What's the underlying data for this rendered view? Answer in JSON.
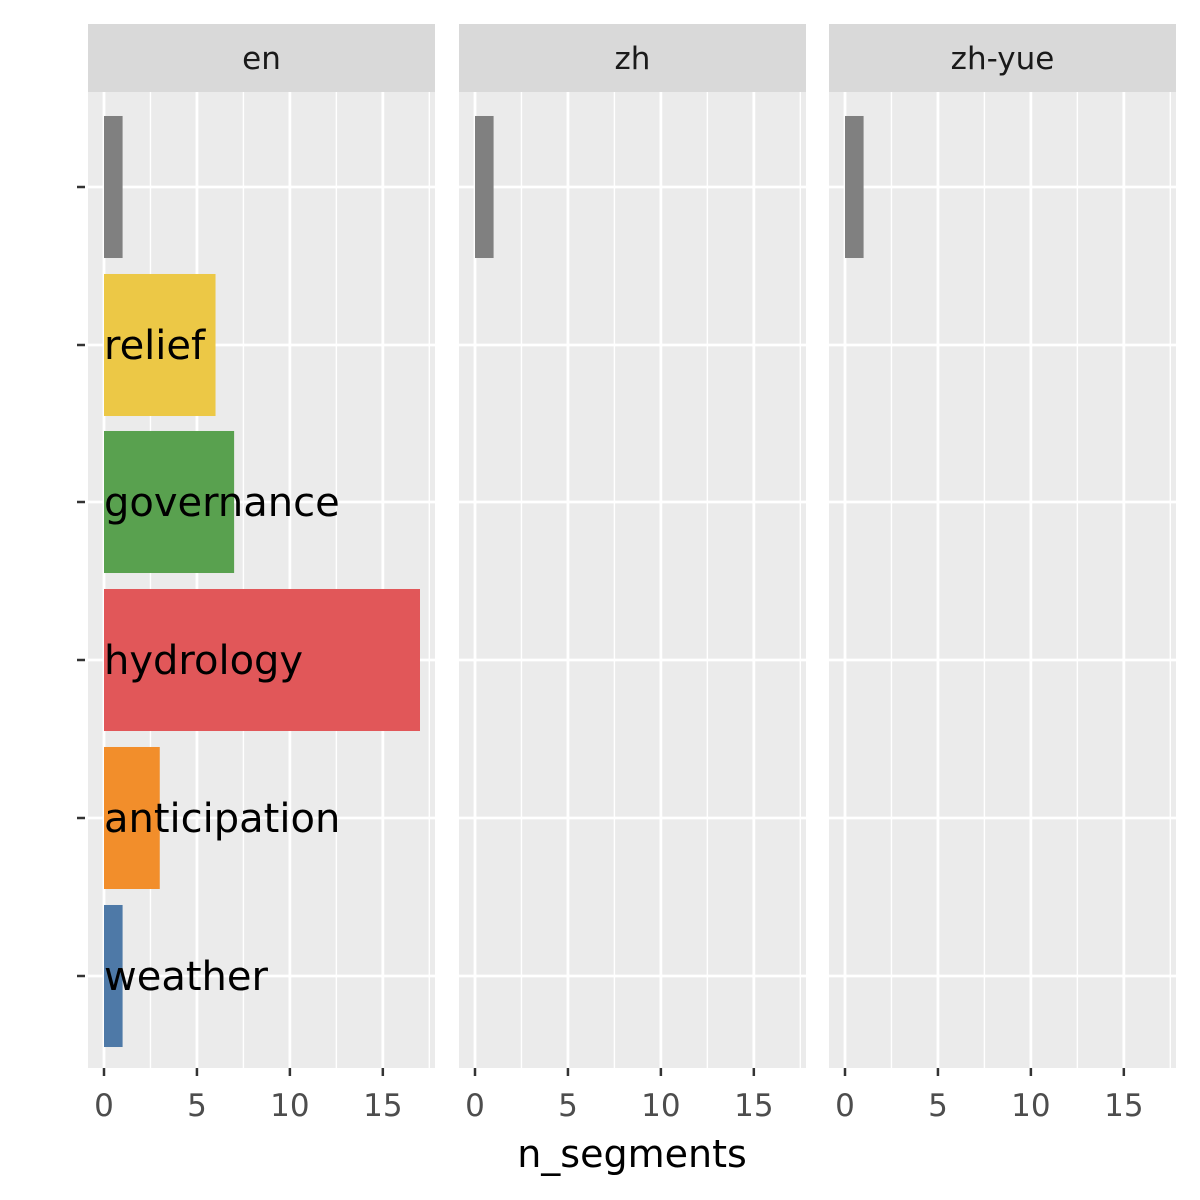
{
  "chart_data": {
    "type": "bar",
    "orientation": "horizontal",
    "facet_variable": "language",
    "facets": [
      {
        "label": "en",
        "bars": [
          {
            "category": "",
            "value": 1,
            "color": "#808080",
            "text": ""
          },
          {
            "category": "relief",
            "value": 6,
            "color": "#ECC846",
            "text": "relief"
          },
          {
            "category": "governance",
            "value": 7,
            "color": "#59A14F",
            "text": "governance"
          },
          {
            "category": "hydrology",
            "value": 17,
            "color": "#E15759",
            "text": "hydrology"
          },
          {
            "category": "anticipation",
            "value": 3,
            "color": "#F28E2B",
            "text": "anticipation"
          },
          {
            "category": "weather",
            "value": 1,
            "color": "#4E79A7",
            "text": "weather"
          }
        ]
      },
      {
        "label": "zh",
        "bars": [
          {
            "category": "",
            "value": 1,
            "color": "#808080",
            "text": ""
          }
        ]
      },
      {
        "label": "zh-yue",
        "bars": [
          {
            "category": "",
            "value": 1,
            "color": "#808080",
            "text": ""
          }
        ]
      }
    ],
    "row_order": [
      "",
      "relief",
      "governance",
      "hydrology",
      "anticipation",
      "weather"
    ],
    "xlabel": "n_segments",
    "ylabel": "",
    "xlim": [
      -0.85,
      17.85
    ],
    "xticks": [
      0,
      5,
      10,
      15
    ],
    "xtick_labels": [
      "0",
      "5",
      "10",
      "15"
    ],
    "grid": true,
    "legend": "none",
    "colors": {
      "panel_bg": "#EBEBEB",
      "strip_bg": "#D9D9D9",
      "grid": "#FFFFFF",
      "tick_text": "#4D4D4D",
      "label_text": "#000000"
    }
  }
}
